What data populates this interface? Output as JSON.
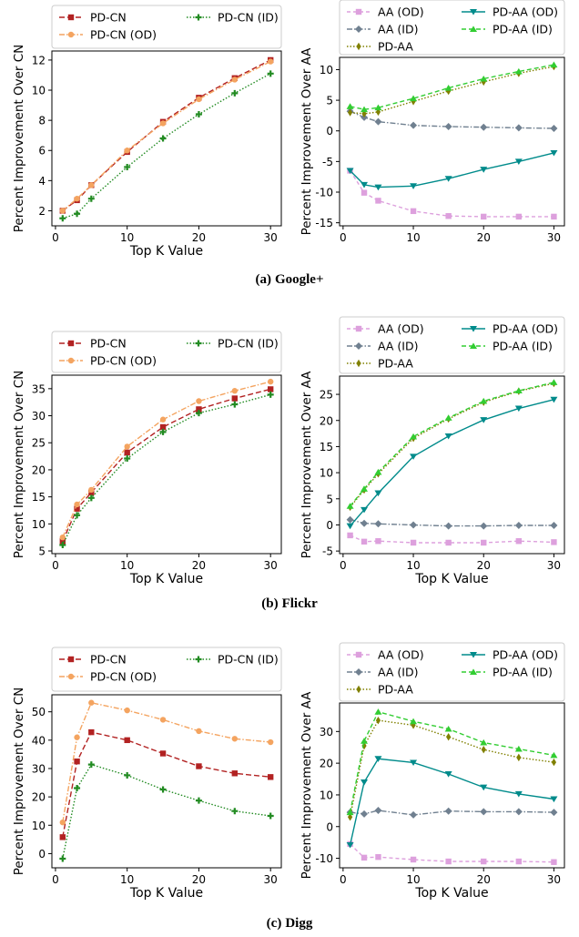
{
  "figure": {
    "captions": [
      {
        "label": "(a)",
        "text": "Google+"
      },
      {
        "label": "(b)",
        "text": "Flickr"
      },
      {
        "label": "(c)",
        "text": "Digg"
      }
    ]
  },
  "styles": {
    "PD-CN": {
      "color": "#b22222",
      "dash": "6,3",
      "marker": "square"
    },
    "PD-CN (OD)": {
      "color": "#f4a460",
      "dash": "6,2,1.5,2",
      "marker": "circle"
    },
    "PD-CN (ID)": {
      "color": "#228b22",
      "dash": "1.5,2",
      "marker": "plus"
    },
    "AA (OD)": {
      "color": "#dda0dd",
      "dash": "4,3",
      "marker": "square"
    },
    "AA (ID)": {
      "color": "#708090",
      "dash": "6,2,1.5,2",
      "marker": "diamond"
    },
    "PD-AA": {
      "color": "#808000",
      "dash": "1.5,2",
      "marker": "thin_diamond"
    },
    "PD-AA (OD)": {
      "color": "#008b8b",
      "dash": "",
      "marker": "tri_down"
    },
    "PD-AA (ID)": {
      "color": "#32cd32",
      "dash": "5,3",
      "marker": "tri_up"
    }
  },
  "chart_data": [
    {
      "type": "line",
      "panel": "Google+ CN",
      "title": "",
      "xlabel": "Top K Value",
      "ylabel": "Percent Improvement Over CN",
      "x": [
        1,
        3,
        5,
        10,
        15,
        20,
        25,
        30
      ],
      "xticks": [
        0,
        10,
        20,
        30
      ],
      "xlim": [
        -0.5,
        31.5
      ],
      "yticks": [
        2,
        4,
        6,
        8,
        10,
        12
      ],
      "ylim": [
        1.0,
        12.6
      ],
      "legend": [
        "PD-CN",
        "PD-CN (ID)",
        "PD-CN (OD)"
      ],
      "legend_layout": "2col-cn",
      "grid": false,
      "series": [
        {
          "name": "PD-CN",
          "values": [
            2.0,
            2.7,
            3.7,
            5.9,
            7.9,
            9.5,
            10.8,
            12.0
          ]
        },
        {
          "name": "PD-CN (OD)",
          "values": [
            2.0,
            2.8,
            3.7,
            6.0,
            7.8,
            9.4,
            10.7,
            11.9
          ]
        },
        {
          "name": "PD-CN (ID)",
          "values": [
            1.5,
            1.8,
            2.8,
            4.9,
            6.8,
            8.4,
            9.8,
            11.1
          ]
        }
      ]
    },
    {
      "type": "line",
      "panel": "Google+ AA",
      "title": "",
      "xlabel": "",
      "ylabel": "Percent Improvement Over AA",
      "x": [
        1,
        3,
        5,
        10,
        15,
        20,
        25,
        30
      ],
      "xticks": [
        0,
        10,
        20,
        30
      ],
      "xlim": [
        -0.5,
        31.5
      ],
      "yticks": [
        -15,
        -10,
        -5,
        0,
        5,
        10
      ],
      "ylim": [
        -15.5,
        12
      ],
      "legend": [
        "AA (OD)",
        "PD-AA (OD)",
        "AA (ID)",
        "PD-AA (ID)",
        "PD-AA"
      ],
      "legend_layout": "2col-aa",
      "grid": false,
      "series": [
        {
          "name": "AA (OD)",
          "values": [
            -6.5,
            -10.1,
            -11.4,
            -13.1,
            -13.9,
            -14.0,
            -14.0,
            -14.0
          ]
        },
        {
          "name": "AA (ID)",
          "values": [
            3.2,
            2.2,
            1.5,
            0.9,
            0.7,
            0.6,
            0.5,
            0.4
          ]
        },
        {
          "name": "PD-AA",
          "values": [
            3.0,
            2.8,
            3.1,
            4.8,
            6.5,
            8.0,
            9.4,
            10.5
          ]
        },
        {
          "name": "PD-AA (OD)",
          "values": [
            -6.5,
            -8.8,
            -9.2,
            -9.0,
            -7.8,
            -6.3,
            -5.0,
            -3.6
          ]
        },
        {
          "name": "PD-AA (ID)",
          "values": [
            4.0,
            3.5,
            3.8,
            5.3,
            7.0,
            8.5,
            9.7,
            10.8
          ]
        }
      ]
    },
    {
      "type": "line",
      "panel": "Flickr CN",
      "title": "",
      "xlabel": "Top K Value",
      "ylabel": "Percent Improvement Over CN",
      "x": [
        1,
        3,
        5,
        10,
        15,
        20,
        25,
        30
      ],
      "xticks": [
        0,
        10,
        20,
        30
      ],
      "xlim": [
        -0.5,
        31.5
      ],
      "yticks": [
        5,
        10,
        15,
        20,
        25,
        30,
        35
      ],
      "ylim": [
        4.5,
        37.5
      ],
      "legend": [
        "PD-CN",
        "PD-CN (ID)",
        "PD-CN (OD)"
      ],
      "legend_layout": "2col-cn",
      "grid": false,
      "series": [
        {
          "name": "PD-CN",
          "values": [
            6.8,
            12.8,
            15.8,
            23.2,
            27.9,
            31.2,
            33.2,
            34.9
          ]
        },
        {
          "name": "PD-CN (OD)",
          "values": [
            7.5,
            13.6,
            16.3,
            24.3,
            29.3,
            32.7,
            34.6,
            36.3
          ]
        },
        {
          "name": "PD-CN (ID)",
          "values": [
            6.1,
            11.6,
            14.8,
            22.1,
            27.0,
            30.5,
            32.1,
            33.9
          ]
        }
      ]
    },
    {
      "type": "line",
      "panel": "Flickr AA",
      "title": "",
      "xlabel": "Top K Value",
      "ylabel": "Percent Improvement Over AA",
      "x": [
        1,
        3,
        5,
        10,
        15,
        20,
        25,
        30
      ],
      "xticks": [
        0,
        10,
        20,
        30
      ],
      "xlim": [
        -0.5,
        31.5
      ],
      "yticks": [
        -5,
        0,
        5,
        10,
        15,
        20,
        25
      ],
      "ylim": [
        -5.5,
        28.5
      ],
      "legend": [
        "AA (OD)",
        "PD-AA (OD)",
        "AA (ID)",
        "PD-AA (ID)",
        "PD-AA"
      ],
      "legend_layout": "2col-aa",
      "grid": false,
      "series": [
        {
          "name": "AA (OD)",
          "values": [
            -2.0,
            -3.2,
            -3.1,
            -3.4,
            -3.4,
            -3.4,
            -3.1,
            -3.3
          ]
        },
        {
          "name": "AA (ID)",
          "values": [
            1.0,
            0.3,
            0.2,
            0.0,
            -0.2,
            -0.2,
            -0.1,
            -0.1
          ]
        },
        {
          "name": "PD-AA",
          "values": [
            3.4,
            6.7,
            9.8,
            16.6,
            20.3,
            23.5,
            25.6,
            27.1
          ]
        },
        {
          "name": "PD-AA (OD)",
          "values": [
            -0.2,
            2.9,
            6.1,
            13.1,
            17.0,
            20.1,
            22.3,
            24.0
          ]
        },
        {
          "name": "PD-AA (ID)",
          "values": [
            3.6,
            6.9,
            10.1,
            16.9,
            20.5,
            23.7,
            25.7,
            27.3
          ]
        }
      ]
    },
    {
      "type": "line",
      "panel": "Digg CN",
      "title": "",
      "xlabel": "Top K Value",
      "ylabel": "Percent Improvement Over CN",
      "x": [
        1,
        3,
        5,
        10,
        15,
        20,
        25,
        30
      ],
      "xticks": [
        0,
        10,
        20,
        30
      ],
      "xlim": [
        -0.5,
        31.5
      ],
      "yticks": [
        0,
        10,
        20,
        30,
        40,
        50
      ],
      "ylim": [
        -5,
        56
      ],
      "legend": [
        "PD-CN",
        "PD-CN (ID)",
        "PD-CN (OD)"
      ],
      "legend_layout": "2col-cn",
      "grid": false,
      "series": [
        {
          "name": "PD-CN",
          "values": [
            5.8,
            32.5,
            42.8,
            40.0,
            35.3,
            30.8,
            28.3,
            27.0
          ]
        },
        {
          "name": "PD-CN (OD)",
          "values": [
            11.0,
            41.0,
            53.2,
            50.5,
            47.2,
            43.2,
            40.5,
            39.3
          ]
        },
        {
          "name": "PD-CN (ID)",
          "values": [
            -1.8,
            23.1,
            31.4,
            27.6,
            22.6,
            18.7,
            15.0,
            13.3
          ]
        }
      ]
    },
    {
      "type": "line",
      "panel": "Digg AA",
      "title": "",
      "xlabel": "Top K Value",
      "ylabel": "Percent Improvement Over AA",
      "x": [
        1,
        3,
        5,
        10,
        15,
        20,
        25,
        30
      ],
      "xticks": [
        0,
        10,
        20,
        30
      ],
      "xlim": [
        -0.5,
        31.5
      ],
      "yticks": [
        -10,
        0,
        10,
        20,
        30
      ],
      "ylim": [
        -13,
        39
      ],
      "legend": [
        "AA (OD)",
        "PD-AA (OD)",
        "AA (ID)",
        "PD-AA (ID)",
        "PD-AA"
      ],
      "legend_layout": "2col-aa",
      "grid": false,
      "series": [
        {
          "name": "AA (OD)",
          "values": [
            -5.5,
            -9.8,
            -9.6,
            -10.4,
            -11.0,
            -11.0,
            -11.0,
            -11.2
          ]
        },
        {
          "name": "AA (ID)",
          "values": [
            4.5,
            4.0,
            5.1,
            3.7,
            4.9,
            4.7,
            4.7,
            4.5
          ]
        },
        {
          "name": "PD-AA",
          "values": [
            3.0,
            25.5,
            33.5,
            32.0,
            28.3,
            24.3,
            21.8,
            20.3
          ]
        },
        {
          "name": "PD-AA (OD)",
          "values": [
            -5.8,
            14.0,
            21.4,
            20.2,
            16.6,
            12.4,
            10.3,
            8.7
          ]
        },
        {
          "name": "PD-AA (ID)",
          "values": [
            4.5,
            27.0,
            36.2,
            33.2,
            30.8,
            26.5,
            24.5,
            22.5
          ]
        }
      ]
    }
  ]
}
